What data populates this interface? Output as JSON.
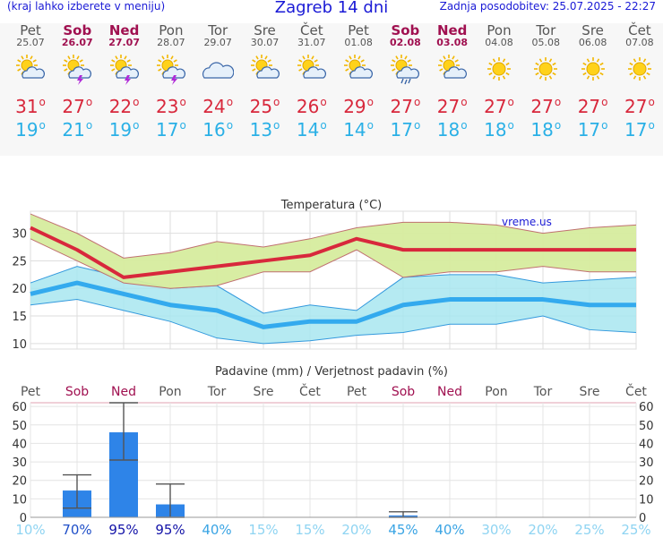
{
  "header": {
    "menu_hint": "(kraj lahko izberete v meniju)",
    "title": "Zagreb 14 dni",
    "updated": "Zadnja posodobitev: 25.07.2025 - 22:27"
  },
  "colors": {
    "max_line": "#d8283c",
    "min_line": "#33aaee",
    "max_band": "#d6ec9e",
    "min_band": "#a8e6f0",
    "bar": "#2e84e8",
    "weekday": "#555555",
    "weekend": "#a01050"
  },
  "days": [
    {
      "name": "Pet",
      "date": "25.07",
      "weekend": false,
      "icon": "sun-cloud-icon",
      "tmax": "31",
      "tmin": "19"
    },
    {
      "name": "Sob",
      "date": "26.07",
      "weekend": true,
      "icon": "thunder-sun-cloud-icon",
      "tmax": "27",
      "tmin": "21"
    },
    {
      "name": "Ned",
      "date": "27.07",
      "weekend": true,
      "icon": "thunder-sun-cloud-icon",
      "tmax": "22",
      "tmin": "19"
    },
    {
      "name": "Pon",
      "date": "28.07",
      "weekend": false,
      "icon": "thunder-sun-cloud-icon",
      "tmax": "23",
      "tmin": "17"
    },
    {
      "name": "Tor",
      "date": "29.07",
      "weekend": false,
      "icon": "cloud-icon",
      "tmax": "24",
      "tmin": "16"
    },
    {
      "name": "Sre",
      "date": "30.07",
      "weekend": false,
      "icon": "sun-cloud-icon",
      "tmax": "25",
      "tmin": "13"
    },
    {
      "name": "Čet",
      "date": "31.07",
      "weekend": false,
      "icon": "sun-cloud-icon",
      "tmax": "26",
      "tmin": "14"
    },
    {
      "name": "Pet",
      "date": "01.08",
      "weekend": false,
      "icon": "sun-cloud-icon",
      "tmax": "29",
      "tmin": "14"
    },
    {
      "name": "Sob",
      "date": "02.08",
      "weekend": true,
      "icon": "rain-sun-cloud-icon",
      "tmax": "27",
      "tmin": "17"
    },
    {
      "name": "Ned",
      "date": "03.08",
      "weekend": true,
      "icon": "sun-cloud-icon",
      "tmax": "27",
      "tmin": "18"
    },
    {
      "name": "Pon",
      "date": "04.08",
      "weekend": false,
      "icon": "sun-icon",
      "tmax": "27",
      "tmin": "18"
    },
    {
      "name": "Tor",
      "date": "05.08",
      "weekend": false,
      "icon": "sun-icon",
      "tmax": "27",
      "tmin": "18"
    },
    {
      "name": "Sre",
      "date": "06.08",
      "weekend": false,
      "icon": "sun-icon",
      "tmax": "27",
      "tmin": "17"
    },
    {
      "name": "Čet",
      "date": "07.08",
      "weekend": false,
      "icon": "sun-icon",
      "tmax": "27",
      "tmin": "17"
    }
  ],
  "chart_data": [
    {
      "type": "line",
      "title": "Temperatura (°C)",
      "watermark": "vreme.us",
      "x": [
        "25.07",
        "26.07",
        "27.07",
        "28.07",
        "29.07",
        "30.07",
        "31.07",
        "01.08",
        "02.08",
        "03.08",
        "04.08",
        "05.08",
        "06.08",
        "07.08"
      ],
      "ylim": [
        9,
        34
      ],
      "yticks": [
        10,
        15,
        20,
        25,
        30
      ],
      "grid": true,
      "series": [
        {
          "role": "max",
          "values": [
            31,
            27,
            22,
            23,
            24,
            25,
            26,
            29,
            27,
            27,
            27,
            27,
            27,
            27
          ],
          "band_upper": [
            33.5,
            30,
            25.5,
            26.5,
            28.5,
            27.5,
            29,
            31,
            32,
            32,
            31.5,
            30,
            31,
            31.5
          ],
          "band_lower": [
            29,
            25,
            21,
            20,
            20.5,
            23,
            23,
            27,
            22,
            23,
            23,
            24,
            23,
            23
          ]
        },
        {
          "role": "min",
          "values": [
            19,
            21,
            19,
            17,
            16,
            13,
            14,
            14,
            17,
            18,
            18,
            18,
            17,
            17
          ],
          "band_upper": [
            21,
            24,
            22,
            20,
            20.5,
            15.5,
            17,
            16,
            22,
            22.5,
            22.5,
            21,
            21.5,
            22
          ],
          "band_lower": [
            17,
            18,
            16,
            14,
            11,
            10,
            10.5,
            11.5,
            12,
            13.5,
            13.5,
            15,
            12.5,
            12
          ]
        }
      ]
    },
    {
      "type": "bar",
      "title": "Padavine (mm) / Verjetnost padavin (%)",
      "categories": [
        "Pet",
        "Sob",
        "Ned",
        "Pon",
        "Tor",
        "Sre",
        "Čet",
        "Pet",
        "Sob",
        "Ned",
        "Pon",
        "Tor",
        "Sre",
        "Čet"
      ],
      "weekend": [
        false,
        true,
        true,
        false,
        false,
        false,
        false,
        false,
        true,
        true,
        false,
        false,
        false,
        false
      ],
      "values": [
        0,
        14.5,
        46,
        7,
        0,
        0,
        0,
        0,
        1,
        0,
        0,
        0,
        0,
        0
      ],
      "range_low": [
        null,
        5,
        31,
        0,
        null,
        null,
        null,
        null,
        0,
        null,
        null,
        null,
        null,
        null
      ],
      "range_high": [
        null,
        23,
        62,
        18,
        null,
        null,
        null,
        null,
        3,
        null,
        null,
        null,
        null,
        null
      ],
      "probability": [
        "10%",
        "70%",
        "95%",
        "95%",
        "40%",
        "15%",
        "15%",
        "20%",
        "45%",
        "40%",
        "30%",
        "20%",
        "25%",
        "25%"
      ],
      "probability_values": [
        10,
        70,
        95,
        95,
        40,
        15,
        15,
        20,
        45,
        40,
        30,
        20,
        25,
        25
      ],
      "ylim": [
        0,
        62
      ],
      "yticks": [
        0,
        10,
        20,
        30,
        40,
        50,
        60
      ]
    }
  ]
}
